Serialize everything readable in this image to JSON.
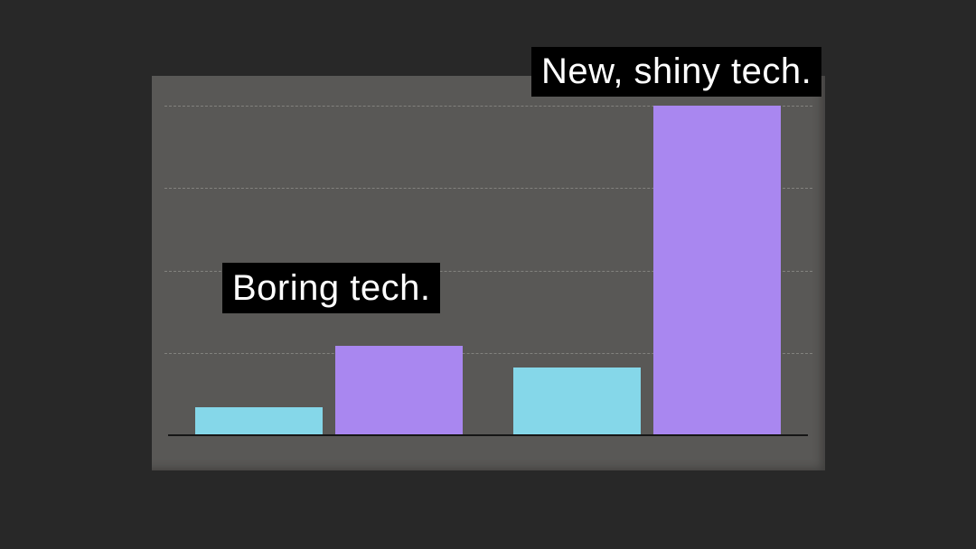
{
  "page": {
    "background_color": "#282828",
    "panel_color": "#595856",
    "gridline_color": "rgba(215,215,208,0.33)",
    "axis_color": "#161616",
    "label_bg_color": "#000000",
    "label_text_color": "#ffffff"
  },
  "labels": {
    "boring": "Boring tech.",
    "shiny": "New, shiny tech."
  },
  "chart_data": {
    "type": "bar",
    "title": "",
    "xlabel": "",
    "ylabel": "",
    "ylim": [
      0,
      4
    ],
    "gridlines": [
      1,
      2,
      3,
      4
    ],
    "grid": true,
    "legend": "none",
    "categories": [
      "Boring tech.",
      "New, shiny tech."
    ],
    "series": [
      {
        "name": "cyan",
        "color": "#85d7e9",
        "values": [
          0.34,
          0.82
        ]
      },
      {
        "name": "purple",
        "color": "#a987f0",
        "values": [
          1.09,
          4.0
        ]
      }
    ],
    "bars": [
      {
        "group": "Boring tech.",
        "series": "cyan",
        "value": 0.34
      },
      {
        "group": "Boring tech.",
        "series": "purple",
        "value": 1.09
      },
      {
        "group": "New, shiny tech.",
        "series": "cyan",
        "value": 0.82
      },
      {
        "group": "New, shiny tech.",
        "series": "purple",
        "value": 4.0
      }
    ],
    "palette": {
      "cyan": "#85d7e9",
      "purple": "#a987f0"
    },
    "annotations": [
      {
        "text": "Boring tech.",
        "style": "black box, white text",
        "points_to": "Boring tech. group"
      },
      {
        "text": "New, shiny tech.",
        "style": "black box, white text",
        "points_to": "New, shiny tech. group"
      }
    ]
  }
}
